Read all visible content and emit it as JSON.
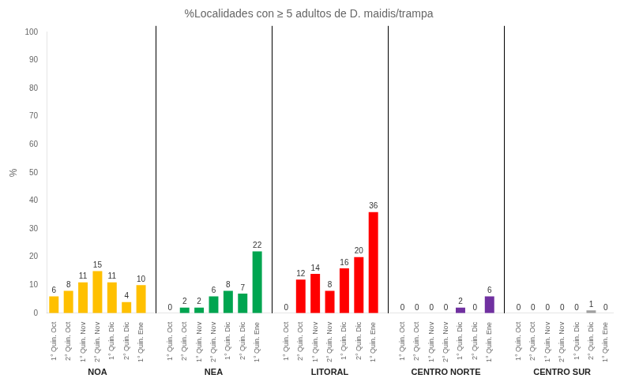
{
  "chart_data": {
    "type": "bar",
    "title": "%Localidades con ≥ 5 adultos de D. maidis/trampa",
    "ylabel": "%",
    "categories": [
      "1° Quin. Oct",
      "2° Quin. Oct",
      "1° Quin. Nov",
      "2° Quin. Nov",
      "1° Quin. Dic",
      "2° Quin. Dic",
      "1° Quin. Ene"
    ],
    "series": [
      {
        "name": "NOA",
        "color": "#FFC000",
        "values": [
          6,
          8,
          11,
          15,
          11,
          4,
          10
        ]
      },
      {
        "name": "NEA",
        "color": "#00A550",
        "values": [
          0,
          2,
          2,
          6,
          8,
          7,
          22
        ]
      },
      {
        "name": "LITORAL",
        "color": "#FF0000",
        "values": [
          0,
          12,
          14,
          8,
          16,
          20,
          36
        ]
      },
      {
        "name": "CENTRO NORTE",
        "color": "#7030A0",
        "values": [
          0,
          0,
          0,
          0,
          2,
          0,
          6
        ]
      },
      {
        "name": "CENTRO SUR",
        "color": "#A0A0A0",
        "values": [
          0,
          0,
          0,
          0,
          0,
          1,
          0
        ]
      }
    ],
    "ylim": [
      0,
      100
    ],
    "yticks": [
      0,
      10,
      20,
      30,
      40,
      50,
      60,
      70,
      80,
      90,
      100
    ],
    "data_labels": true,
    "grid": false
  }
}
